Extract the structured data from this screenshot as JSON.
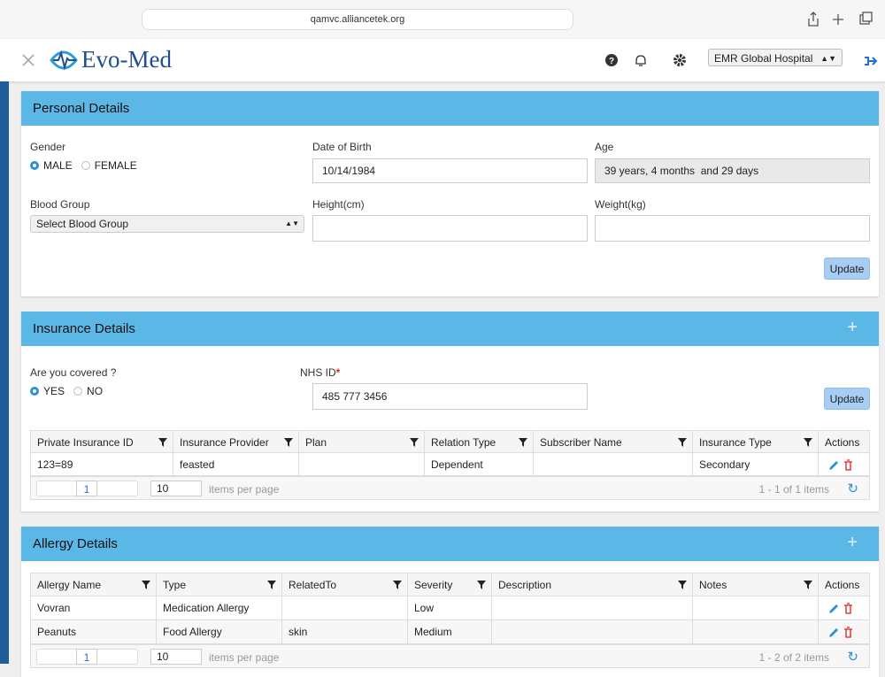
{
  "browser": {
    "url": "qamvc.alliancetek.org"
  },
  "header": {
    "brand": "Evo-Med",
    "hospital": "EMR Global Hospital"
  },
  "personal": {
    "title": "Personal Details",
    "gender_label": "Gender",
    "gender_options": [
      "MALE",
      "FEMALE"
    ],
    "dob_label": "Date of Birth",
    "dob": "10/14/1984",
    "age_label": "Age",
    "age": "39 years, 4 months  and 29 days",
    "blood_label": "Blood Group",
    "blood_placeholder": "Select Blood Group",
    "height_label": "Height(cm)",
    "weight_label": "Weight(kg)",
    "button": "Update"
  },
  "insurance": {
    "title": "Insurance Details",
    "covered_label": "Are you covered ?",
    "covered_options": [
      "YES",
      "NO"
    ],
    "nhs_label": "NHS ID",
    "required_mark": "*",
    "nhs_id": "485 777 3456",
    "button": "Update",
    "table": {
      "columns": [
        "Private Insurance ID",
        "Insurance Provider",
        "Plan",
        "Relation Type",
        "Subscriber Name",
        "Insurance Type",
        "Actions"
      ],
      "rows": [
        [
          "123=89",
          "feasted",
          null,
          "Dependent",
          null,
          "Secondary"
        ]
      ],
      "pager": {
        "page": "1",
        "page_size": "10",
        "page_size_label": "items per page",
        "summary": "1 - 1 of 1 items"
      }
    }
  },
  "allergy": {
    "title": "Allergy Details",
    "table": {
      "columns": [
        "Allergy Name",
        "Type",
        "RelatedTo",
        "Severity",
        "Description",
        "Notes",
        "Actions"
      ],
      "rows": [
        [
          "Vovran",
          "Medication Allergy",
          null,
          "Low",
          null,
          null
        ],
        [
          "Peanuts",
          "Food Allergy",
          "skin",
          "Medium",
          null,
          null
        ]
      ],
      "pager": {
        "page": "1",
        "page_size": "10",
        "page_size_label": "items per page",
        "summary": "1 - 2 of 2 items"
      }
    }
  }
}
